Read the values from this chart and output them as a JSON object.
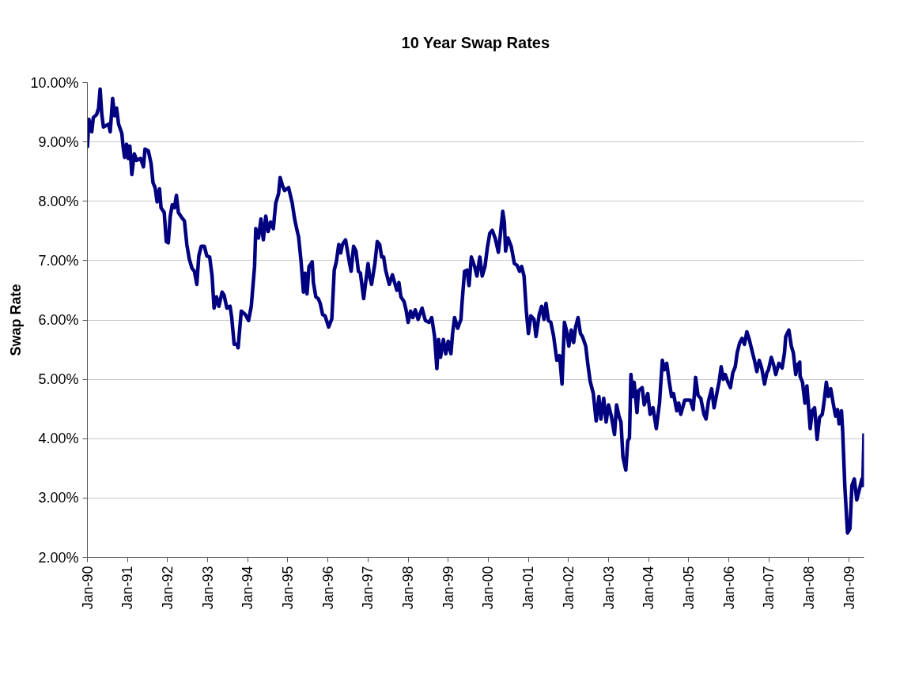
{
  "chart_data": {
    "type": "line",
    "title": "10 Year Swap Rates",
    "ylabel": "Swap Rate",
    "x": [
      "1990-01-01",
      "1990-01-15",
      "1990-02-10",
      "1990-02-24",
      "1990-03-26",
      "1990-04-13",
      "1990-04-27",
      "1990-05-12",
      "1990-05-27",
      "1990-07-13",
      "1990-07-28",
      "1990-08-19",
      "1990-09-06",
      "1990-09-24",
      "1990-10-12",
      "1990-11-11",
      "1990-11-22",
      "1990-12-06",
      "1990-12-24",
      "1991-01-08",
      "1991-01-23",
      "1991-02-10",
      "1991-03-04",
      "1991-03-26",
      "1991-05-01",
      "1991-05-27",
      "1991-06-10",
      "1991-07-10",
      "1991-08-04",
      "1991-08-22",
      "1991-09-10",
      "1991-09-28",
      "1991-10-20",
      "1991-11-03",
      "1991-12-02",
      "1991-12-21",
      "1992-01-08",
      "1992-01-26",
      "1992-02-13",
      "1992-03-04",
      "1992-03-22",
      "1992-04-09",
      "1992-05-08",
      "1992-06-03",
      "1992-06-25",
      "1992-07-17",
      "1992-08-11",
      "1992-09-02",
      "1992-09-24",
      "1992-10-12",
      "1992-11-03",
      "1992-12-02",
      "1992-12-24",
      "1993-01-19",
      "1993-02-10",
      "1993-02-28",
      "1993-03-22",
      "1993-04-13",
      "1993-05-12",
      "1993-05-30",
      "1993-06-25",
      "1993-07-24",
      "1993-08-08",
      "1993-08-30",
      "1993-09-24",
      "1993-10-05",
      "1993-11-03",
      "1993-12-10",
      "1994-01-08",
      "1994-02-02",
      "1994-03-04",
      "1994-03-15",
      "1994-04-09",
      "1994-05-01",
      "1994-05-23",
      "1994-06-14",
      "1994-07-06",
      "1994-07-28",
      "1994-08-22",
      "1994-09-13",
      "1994-10-09",
      "1994-10-23",
      "1994-11-14",
      "1994-12-02",
      "1995-01-08",
      "1995-02-10",
      "1995-03-04",
      "1995-03-26",
      "1995-04-09",
      "1995-05-01",
      "1995-05-23",
      "1995-06-07",
      "1995-06-25",
      "1995-07-13",
      "1995-08-11",
      "1995-08-22",
      "1995-09-13",
      "1995-10-05",
      "1995-10-23",
      "1995-11-14",
      "1995-12-06",
      "1996-01-08",
      "1996-02-06",
      "1996-02-28",
      "1996-03-18",
      "1996-04-09",
      "1996-04-27",
      "1996-05-12",
      "1996-06-10",
      "1996-07-17",
      "1996-07-31",
      "1996-08-22",
      "1996-09-13",
      "1996-10-05",
      "1996-10-23",
      "1996-11-22",
      "1996-12-10",
      "1997-01-01",
      "1997-01-15",
      "1997-02-02",
      "1997-03-04",
      "1997-03-26",
      "1997-04-17",
      "1997-05-05",
      "1997-05-23",
      "1997-06-10",
      "1997-07-13",
      "1997-08-11",
      "1997-09-20",
      "1997-10-09",
      "1997-10-27",
      "1997-11-25",
      "1997-12-13",
      "1998-01-01",
      "1998-01-23",
      "1998-02-13",
      "1998-03-07",
      "1998-04-02",
      "1998-05-08",
      "1998-06-07",
      "1998-07-10",
      "1998-08-04",
      "1998-08-30",
      "1998-09-20",
      "1998-10-05",
      "1998-10-23",
      "1998-11-18",
      "1998-12-10",
      "1999-01-01",
      "1999-01-26",
      "1999-02-10",
      "1999-02-28",
      "1999-03-29",
      "1999-04-27",
      "1999-05-08",
      "1999-05-30",
      "1999-06-21",
      "1999-07-10",
      "1999-07-31",
      "1999-08-30",
      "1999-09-20",
      "1999-10-16",
      "1999-11-07",
      "1999-12-02",
      "1999-12-24",
      "2000-01-15",
      "2000-02-06",
      "2000-03-04",
      "2000-04-02",
      "2000-04-20",
      "2000-05-12",
      "2000-05-27",
      "2000-06-07",
      "2000-06-29",
      "2000-07-28",
      "2000-08-26",
      "2000-09-20",
      "2000-10-12",
      "2000-10-31",
      "2000-11-22",
      "2000-12-13",
      "2001-01-01",
      "2001-01-23",
      "2001-02-21",
      "2001-03-11",
      "2001-04-09",
      "2001-05-01",
      "2001-05-23",
      "2001-06-10",
      "2001-07-02",
      "2001-07-24",
      "2001-08-19",
      "2001-09-17",
      "2001-10-12",
      "2001-11-03",
      "2001-11-25",
      "2001-12-13",
      "2002-01-04",
      "2002-01-26",
      "2002-02-17",
      "2002-03-07",
      "2002-03-29",
      "2002-04-20",
      "2002-05-08",
      "2002-06-07",
      "2002-06-25",
      "2002-07-17",
      "2002-08-15",
      "2002-09-10",
      "2002-10-05",
      "2002-10-23",
      "2002-11-18",
      "2002-12-10",
      "2003-01-01",
      "2003-01-26",
      "2003-02-24",
      "2003-03-15",
      "2003-04-06",
      "2003-04-24",
      "2003-05-12",
      "2003-06-07",
      "2003-06-25",
      "2003-07-10",
      "2003-07-24",
      "2003-08-08",
      "2003-08-22",
      "2003-09-17",
      "2003-10-01",
      "2003-11-03",
      "2003-11-22",
      "2003-12-24",
      "2004-01-15",
      "2004-02-10",
      "2004-03-11",
      "2004-04-09",
      "2004-05-05",
      "2004-05-23",
      "2004-06-14",
      "2004-07-06",
      "2004-07-28",
      "2004-08-15",
      "2004-09-13",
      "2004-10-01",
      "2004-10-20",
      "2004-11-25",
      "2005-01-15",
      "2005-02-10",
      "2005-03-04",
      "2005-03-26",
      "2005-04-20",
      "2005-05-19",
      "2005-06-07",
      "2005-06-29",
      "2005-07-28",
      "2005-08-19",
      "2005-09-13",
      "2005-10-05",
      "2005-10-23",
      "2005-11-11",
      "2005-11-29",
      "2005-12-24",
      "2006-01-15",
      "2006-02-06",
      "2006-02-28",
      "2006-03-18",
      "2006-04-09",
      "2006-05-01",
      "2006-05-23",
      "2006-06-14",
      "2006-07-06",
      "2006-08-04",
      "2006-08-22",
      "2006-09-13",
      "2006-10-05",
      "2006-10-27",
      "2006-11-22",
      "2006-12-13",
      "2006-12-28",
      "2007-01-23",
      "2007-02-13",
      "2007-03-04",
      "2007-04-02",
      "2007-05-01",
      "2007-05-23",
      "2007-06-03",
      "2007-07-02",
      "2007-07-24",
      "2007-08-11",
      "2007-09-02",
      "2007-09-17",
      "2007-10-09",
      "2007-10-12",
      "2007-11-03",
      "2007-11-25",
      "2007-12-13",
      "2008-01-12",
      "2008-01-30",
      "2008-02-21",
      "2008-03-15",
      "2008-04-06",
      "2008-05-01",
      "2008-05-16",
      "2008-06-07",
      "2008-06-25",
      "2008-07-17",
      "2008-08-08",
      "2008-08-30",
      "2008-09-17",
      "2008-10-01",
      "2008-10-23",
      "2008-11-03",
      "2008-11-22",
      "2008-12-17",
      "2009-01-08",
      "2009-01-26",
      "2009-02-17",
      "2009-03-11",
      "2009-04-06",
      "2009-04-27",
      "2009-05-05",
      "2009-05-16"
    ],
    "series": [
      {
        "color": "#000080",
        "values": [
          8.9,
          9.38,
          9.17,
          9.41,
          9.46,
          9.57,
          9.89,
          9.47,
          9.25,
          9.3,
          9.17,
          9.73,
          9.44,
          9.57,
          9.3,
          9.14,
          8.93,
          8.74,
          8.96,
          8.72,
          8.93,
          8.45,
          8.8,
          8.69,
          8.72,
          8.58,
          8.88,
          8.85,
          8.64,
          8.31,
          8.23,
          7.99,
          8.21,
          7.89,
          7.81,
          7.32,
          7.3,
          7.75,
          7.94,
          7.89,
          8.1,
          7.81,
          7.73,
          7.67,
          7.27,
          7.03,
          6.87,
          6.82,
          6.6,
          7.08,
          7.24,
          7.24,
          7.08,
          7.06,
          6.74,
          6.2,
          6.39,
          6.23,
          6.47,
          6.42,
          6.2,
          6.23,
          6.04,
          5.59,
          5.59,
          5.53,
          6.15,
          6.09,
          5.99,
          6.23,
          6.9,
          7.54,
          7.38,
          7.7,
          7.35,
          7.75,
          7.49,
          7.65,
          7.54,
          7.97,
          8.13,
          8.4,
          8.26,
          8.18,
          8.23,
          7.97,
          7.7,
          7.51,
          7.4,
          7.0,
          6.47,
          6.79,
          6.44,
          6.9,
          6.98,
          6.63,
          6.39,
          6.36,
          6.28,
          6.09,
          6.07,
          5.88,
          6.02,
          6.84,
          6.98,
          7.27,
          7.13,
          7.27,
          7.35,
          6.95,
          6.82,
          7.24,
          7.16,
          6.82,
          6.79,
          6.36,
          6.63,
          6.95,
          6.74,
          6.6,
          6.95,
          7.32,
          7.27,
          7.06,
          7.06,
          6.84,
          6.6,
          6.76,
          6.5,
          6.63,
          6.39,
          6.31,
          6.17,
          5.96,
          6.15,
          6.04,
          6.17,
          6.01,
          6.2,
          5.99,
          5.96,
          6.04,
          5.72,
          5.18,
          5.67,
          5.37,
          5.67,
          5.43,
          5.64,
          5.43,
          5.77,
          6.04,
          5.86,
          6.01,
          6.31,
          6.82,
          6.84,
          6.58,
          7.06,
          6.9,
          6.74,
          7.06,
          6.74,
          6.9,
          7.22,
          7.46,
          7.51,
          7.38,
          7.14,
          7.43,
          7.83,
          7.64,
          7.16,
          7.38,
          7.24,
          6.95,
          6.92,
          6.82,
          6.9,
          6.74,
          6.15,
          5.77,
          6.07,
          6.01,
          5.72,
          6.09,
          6.23,
          6.01,
          6.28,
          5.99,
          5.96,
          5.72,
          5.32,
          5.4,
          4.92,
          5.96,
          5.83,
          5.56,
          5.83,
          5.62,
          5.88,
          6.04,
          5.77,
          5.72,
          5.56,
          5.27,
          4.97,
          4.76,
          4.3,
          4.71,
          4.33,
          4.68,
          4.28,
          4.57,
          4.38,
          4.07,
          4.57,
          4.38,
          4.28,
          3.69,
          3.47,
          3.96,
          4.01,
          5.08,
          4.71,
          4.95,
          4.44,
          4.81,
          4.86,
          4.57,
          4.76,
          4.41,
          4.52,
          4.17,
          4.6,
          5.32,
          5.16,
          5.27,
          4.97,
          4.71,
          4.76,
          4.47,
          4.6,
          4.41,
          4.65,
          4.65,
          4.49,
          5.03,
          4.73,
          4.68,
          4.41,
          4.33,
          4.63,
          4.84,
          4.52,
          4.76,
          4.97,
          5.21,
          5.0,
          5.08,
          4.95,
          4.86,
          5.11,
          5.21,
          5.45,
          5.61,
          5.69,
          5.59,
          5.8,
          5.67,
          5.45,
          5.32,
          5.13,
          5.32,
          5.19,
          4.92,
          5.11,
          5.16,
          5.37,
          5.24,
          5.08,
          5.27,
          5.19,
          5.45,
          5.72,
          5.83,
          5.56,
          5.45,
          5.08,
          5.24,
          5.29,
          5.05,
          4.95,
          4.6,
          4.89,
          4.17,
          4.47,
          4.52,
          3.99,
          4.36,
          4.41,
          4.6,
          4.95,
          4.71,
          4.84,
          4.6,
          4.38,
          4.49,
          4.25,
          4.47,
          4.12,
          3.21,
          2.41,
          2.48,
          3.21,
          3.32,
          2.97,
          3.16,
          3.32,
          3.21,
          4.09
        ]
      }
    ],
    "xlim": [
      "1990-01-01",
      "2009-05-16"
    ],
    "ylim": [
      2,
      10
    ],
    "xticks": [
      {
        "value": "1990-01",
        "label": "Jan-90"
      },
      {
        "value": "1991-01",
        "label": "Jan-91"
      },
      {
        "value": "1992-01",
        "label": "Jan-92"
      },
      {
        "value": "1993-01",
        "label": "Jan-93"
      },
      {
        "value": "1994-01",
        "label": "Jan-94"
      },
      {
        "value": "1995-01",
        "label": "Jan-95"
      },
      {
        "value": "1996-01",
        "label": "Jan-96"
      },
      {
        "value": "1997-01",
        "label": "Jan-97"
      },
      {
        "value": "1998-01",
        "label": "Jan-98"
      },
      {
        "value": "1999-01",
        "label": "Jan-99"
      },
      {
        "value": "2000-01",
        "label": "Jan-00"
      },
      {
        "value": "2001-01",
        "label": "Jan-01"
      },
      {
        "value": "2002-01",
        "label": "Jan-02"
      },
      {
        "value": "2003-01",
        "label": "Jan-03"
      },
      {
        "value": "2004-01",
        "label": "Jan-04"
      },
      {
        "value": "2005-01",
        "label": "Jan-05"
      },
      {
        "value": "2006-01",
        "label": "Jan-06"
      },
      {
        "value": "2007-01",
        "label": "Jan-07"
      },
      {
        "value": "2008-01",
        "label": "Jan-08"
      },
      {
        "value": "2009-01",
        "label": "Jan-09"
      }
    ],
    "yticks": [
      {
        "value": 2,
        "label": "2.00%"
      },
      {
        "value": 3,
        "label": "3.00%"
      },
      {
        "value": 4,
        "label": "4.00%"
      },
      {
        "value": 5,
        "label": "5.00%"
      },
      {
        "value": 6,
        "label": "6.00%"
      },
      {
        "value": 7,
        "label": "7.00%"
      },
      {
        "value": 8,
        "label": "8.00%"
      },
      {
        "value": 9,
        "label": "9.00%"
      },
      {
        "value": 10,
        "label": "10.00%"
      }
    ],
    "grid": "y"
  }
}
